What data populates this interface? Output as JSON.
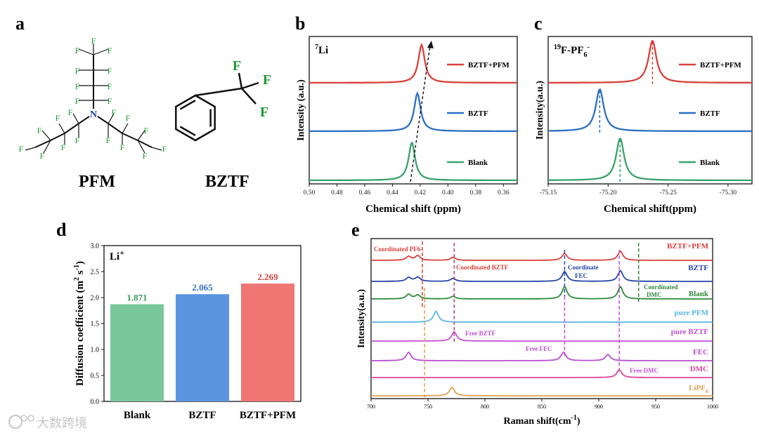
{
  "panels": {
    "a": "a",
    "b": "b",
    "c": "c",
    "d": "d",
    "e": "e"
  },
  "molecules": {
    "pfm": {
      "name": "PFM",
      "n": "N",
      "f": "F"
    },
    "bztf": {
      "name": "BZTF",
      "f": "F"
    }
  },
  "watermark": "大数跨境",
  "chart_data": [
    {
      "id": "b",
      "type": "line",
      "title": "7Li",
      "title_sup": "7",
      "title_main": "Li",
      "xlabel": "Chemical shift (ppm)",
      "ylabel": "Intensity (a.u.)",
      "xlim": [
        0.5,
        0.35
      ],
      "xreversed": true,
      "xticks": [
        "0.50",
        "0.48",
        "0.46",
        "0.44",
        "0.42",
        "0.40",
        "0.38",
        "0.36"
      ],
      "series": [
        {
          "name": "BZTF+PFM",
          "color": "#d9403a",
          "peak": 0.419
        },
        {
          "name": "BZTF",
          "color": "#2a6fc5",
          "peak": 0.422
        },
        {
          "name": "Blank",
          "color": "#3aa26a",
          "peak": 0.426
        }
      ]
    },
    {
      "id": "c",
      "type": "line",
      "title": "19F-PF6-",
      "title_sup": "19",
      "title_main": "F-PF",
      "title_sub": "6",
      "title_sup2": "-",
      "xlabel": "Chemical shift(ppm)",
      "ylabel": "Intensity(a.u.)",
      "xlim": [
        -75.15,
        -75.32
      ],
      "xreversed": true,
      "xticks": [
        "-75.15",
        "-75.20",
        "-75.25",
        "-75.30"
      ],
      "series": [
        {
          "name": "BZTF+PFM",
          "color": "#d9403a",
          "peak": -75.237
        },
        {
          "name": "BZTF",
          "color": "#2a6fc5",
          "peak": -75.193
        },
        {
          "name": "Blank",
          "color": "#3aa26a",
          "peak": -75.21
        }
      ]
    },
    {
      "id": "d",
      "type": "bar",
      "title": "Li+",
      "title_main": "Li",
      "title_sup": "+",
      "categories": [
        "Blank",
        "BZTF",
        "BZTF+PFM"
      ],
      "values": [
        1.871,
        2.065,
        2.269
      ],
      "value_labels": [
        "1.871",
        "2.065",
        "2.269"
      ],
      "colors": [
        "#79c79a",
        "#5b95e0",
        "#ef7673"
      ],
      "label_colors": [
        "#3a9a5e",
        "#2f6fc0",
        "#d9403a"
      ],
      "ylabel": "Diffusion coefficient (m² s⁻¹)",
      "ylabel_parts": [
        "Diffusion coefficient (m",
        "2",
        " s",
        "-1",
        ")"
      ],
      "ylim": [
        0,
        3.0
      ],
      "yticks": [
        "0.0",
        "0.5",
        "1.0",
        "1.5",
        "2.0",
        "2.5",
        "3.0"
      ]
    },
    {
      "id": "e",
      "type": "line",
      "xlabel": "Raman shift(cm-1)",
      "xlabel_main": "Raman shift(cm",
      "xlabel_sup": "-1",
      "xlabel_end": ")",
      "ylabel": "Intensity(a.u.)",
      "xlim": [
        700,
        1000
      ],
      "xticks": [
        "700",
        "750",
        "800",
        "850",
        "900",
        "950",
        "1000"
      ],
      "series": [
        {
          "name": "BZTF+PFM",
          "color": "#d9403a",
          "peaks": [
            [
              733,
              0.5
            ],
            [
              741,
              0.6
            ],
            [
              772,
              0.4
            ],
            [
              870,
              0.9
            ],
            [
              919,
              1.2
            ]
          ]
        },
        {
          "name": "BZTF",
          "color": "#2545a8",
          "peaks": [
            [
              733,
              0.5
            ],
            [
              741,
              0.55
            ],
            [
              772,
              0.4
            ],
            [
              870,
              1.3
            ],
            [
              919,
              1.4
            ]
          ]
        },
        {
          "name": "Blank",
          "color": "#2e8a3a",
          "peaks": [
            [
              733,
              0.6
            ],
            [
              741,
              0.5
            ],
            [
              772,
              0.35
            ],
            [
              870,
              1.6
            ],
            [
              919,
              1.6
            ]
          ]
        },
        {
          "name": "pure PFM",
          "color": "#5bb6e6",
          "peaks": [
            [
              757,
              1.4
            ]
          ]
        },
        {
          "name": "pure BZTF",
          "color": "#c24fd6",
          "peaks": [
            [
              773,
              1.2
            ]
          ]
        },
        {
          "name": "FEC",
          "color": "#b94fd0",
          "peaks": [
            [
              733,
              1.1
            ],
            [
              869,
              1.1
            ],
            [
              908,
              0.8
            ]
          ]
        },
        {
          "name": "DMC",
          "color": "#d9469a",
          "peaks": [
            [
              918,
              1.0
            ]
          ]
        },
        {
          "name": "LiPF6",
          "name_main": "LiPF",
          "name_sub": "6",
          "color": "#e0a055",
          "peaks": [
            [
              771,
              1.1
            ]
          ]
        }
      ],
      "annotations": [
        {
          "text": "Coordinated PF6-",
          "color": "#d9403a"
        },
        {
          "text": "Coordinated BZTF",
          "color": "#d9403a"
        },
        {
          "text": "Coordinate",
          "color": "#2545a8"
        },
        {
          "text": "FEC",
          "color": "#2545a8"
        },
        {
          "text": "Coordinated",
          "color": "#2e8a3a"
        },
        {
          "text": "DMC",
          "color": "#2e8a3a"
        },
        {
          "text": "Free BZTF",
          "color": "#c24fd6"
        },
        {
          "text": "Free FEC",
          "color": "#b94fd0"
        },
        {
          "text": "Free DMC",
          "color": "#c24fd6"
        }
      ]
    }
  ]
}
